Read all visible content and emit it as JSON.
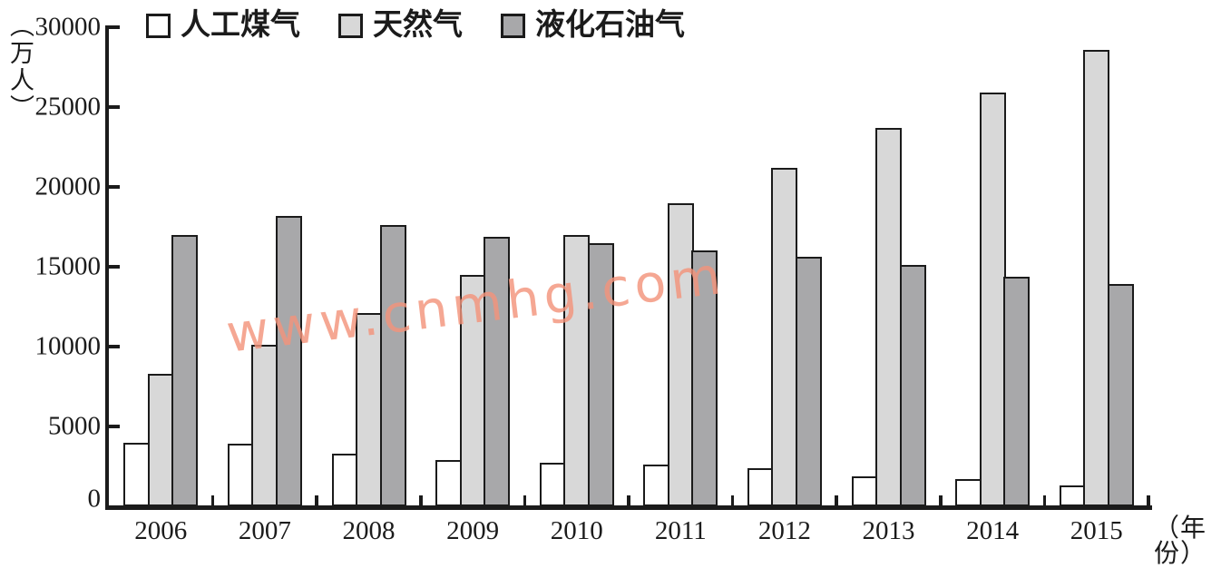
{
  "chart_data": {
    "type": "bar",
    "title": "",
    "categories": [
      "2006",
      "2007",
      "2008",
      "2009",
      "2010",
      "2011",
      "2012",
      "2013",
      "2014",
      "2015"
    ],
    "series": [
      {
        "name": "人工煤气",
        "color": "#ffffff",
        "values": [
          4000,
          3900,
          3300,
          2900,
          2700,
          2600,
          2400,
          1900,
          1700,
          1300
        ]
      },
      {
        "name": "天然气",
        "color": "#d8d8d8",
        "values": [
          8300,
          10100,
          12100,
          14500,
          17000,
          19000,
          21200,
          23700,
          25900,
          28600
        ]
      },
      {
        "name": "液化石油气",
        "color": "#a8a8aa",
        "values": [
          17000,
          18200,
          17600,
          16900,
          16500,
          16000,
          15600,
          15100,
          14400,
          13900
        ]
      }
    ],
    "xlabel": "（年份）",
    "ylabel": "（万人）",
    "ylim": [
      0,
      30000
    ],
    "yticks": [
      0,
      5000,
      10000,
      15000,
      20000,
      25000,
      30000
    ],
    "grid": false,
    "legend_position": "top"
  },
  "watermark": {
    "text": "www.cnmhg.com",
    "color": "#f3947b"
  },
  "axis_color": "#1b1b1b"
}
